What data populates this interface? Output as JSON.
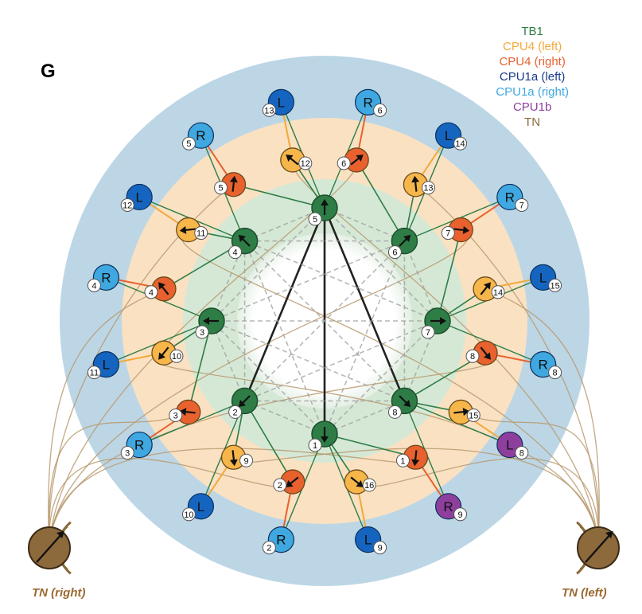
{
  "panel_letter": "G",
  "legend": [
    {
      "label": "TB1",
      "color": "#2e7d46"
    },
    {
      "label": "CPU4 (left)",
      "color": "#f2a93b"
    },
    {
      "label": "CPU4 (right)",
      "color": "#e8612e"
    },
    {
      "label": "CPU1a (left)",
      "color": "#1b3a8c"
    },
    {
      "label": "CPU1a (right)",
      "color": "#3fa8e0"
    },
    {
      "label": "CPU1b",
      "color": "#8e3f9e"
    },
    {
      "label": "TN",
      "color": "#8a6a3a"
    }
  ],
  "colors": {
    "tb1": "#2e7d46",
    "cpu4_left": "#f6b64a",
    "cpu4_right": "#e8612e",
    "cpu1a_left": "#1565c0",
    "cpu1a_right": "#3fa8e0",
    "cpu1b": "#8e3f9e",
    "tn": "#8a6a3a",
    "ring_outer": "#bcd6e6",
    "ring_mid": "#f9e1c2",
    "ring_inner": "#d5e8d6"
  },
  "tn": {
    "right_label": "TN (right)",
    "left_label": "TN (left)"
  },
  "tb1": [
    {
      "n": "5"
    },
    {
      "n": "6"
    },
    {
      "n": "7"
    },
    {
      "n": "8"
    },
    {
      "n": "1"
    },
    {
      "n": "2"
    },
    {
      "n": "3"
    },
    {
      "n": "4"
    }
  ],
  "cpu4": [
    {
      "n": "12",
      "side": "left"
    },
    {
      "n": "6",
      "side": "right"
    },
    {
      "n": "13",
      "side": "left"
    },
    {
      "n": "7",
      "side": "right"
    },
    {
      "n": "14",
      "side": "left"
    },
    {
      "n": "8",
      "side": "right"
    },
    {
      "n": "15",
      "side": "left"
    },
    {
      "n": "1",
      "side": "right"
    },
    {
      "n": "16",
      "side": "left"
    },
    {
      "n": "2",
      "side": "right"
    },
    {
      "n": "9",
      "side": "left"
    },
    {
      "n": "3",
      "side": "right"
    },
    {
      "n": "10",
      "side": "left"
    },
    {
      "n": "4",
      "side": "right"
    },
    {
      "n": "11",
      "side": "left"
    },
    {
      "n": "5",
      "side": "right"
    }
  ],
  "cpu1": [
    {
      "letter": "L",
      "n": "13",
      "type": "left"
    },
    {
      "letter": "R",
      "n": "6",
      "type": "right"
    },
    {
      "letter": "L",
      "n": "14",
      "type": "left"
    },
    {
      "letter": "R",
      "n": "7",
      "type": "right"
    },
    {
      "letter": "L",
      "n": "15",
      "type": "left"
    },
    {
      "letter": "R",
      "n": "8",
      "type": "right"
    },
    {
      "letter": "L",
      "n": "8",
      "type": "b"
    },
    {
      "letter": "R",
      "n": "9",
      "type": "b"
    },
    {
      "letter": "L",
      "n": "9",
      "type": "left"
    },
    {
      "letter": "R",
      "n": "2",
      "type": "right"
    },
    {
      "letter": "L",
      "n": "10",
      "type": "left"
    },
    {
      "letter": "R",
      "n": "3",
      "type": "right"
    },
    {
      "letter": "L",
      "n": "11",
      "type": "left"
    },
    {
      "letter": "R",
      "n": "4",
      "type": "right"
    },
    {
      "letter": "L",
      "n": "12",
      "type": "left"
    },
    {
      "letter": "R",
      "n": "5",
      "type": "right"
    }
  ]
}
